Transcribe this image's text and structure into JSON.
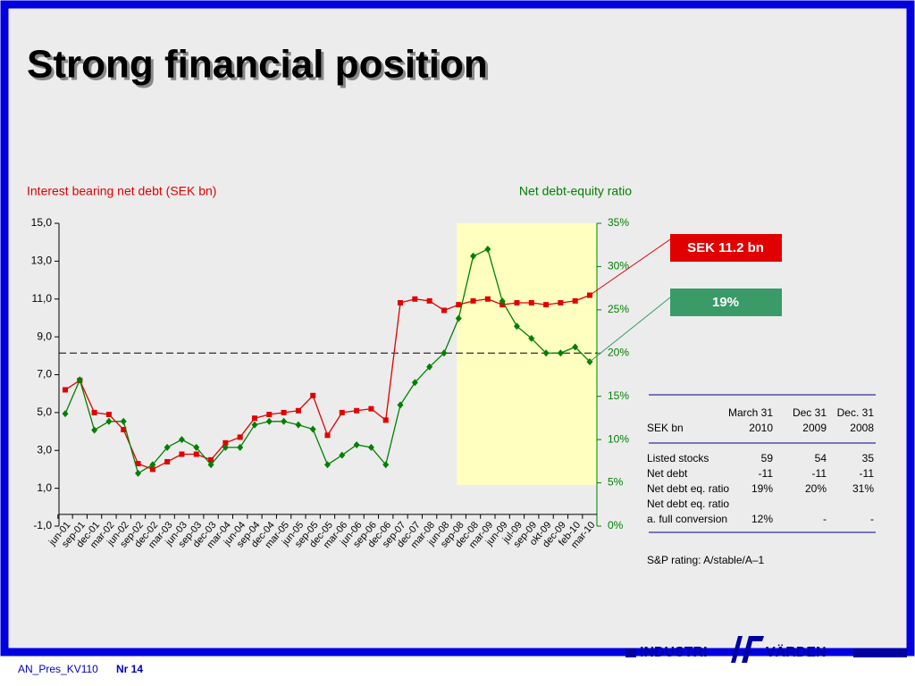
{
  "slide": {
    "title": "Strong financial position",
    "footer": {
      "file": "AN_Pres_KV110",
      "page": "Nr 14"
    },
    "logo": {
      "left": "INDUSTRI",
      "right": "VÄRDEN"
    }
  },
  "chart_data": {
    "type": "line",
    "categories": [
      "jun-01",
      "sep-01",
      "dec-01",
      "mar-02",
      "jun-02",
      "sep-02",
      "dec-02",
      "mar-03",
      "jun-03",
      "sep-03",
      "dec-03",
      "mar-04",
      "jun-04",
      "sep-04",
      "dec-04",
      "mar-05",
      "jun-05",
      "sep-05",
      "dec-05",
      "mar-06",
      "jun-06",
      "sep-06",
      "dec-06",
      "sep-07",
      "dec-07",
      "mar-08",
      "jun-08",
      "sep-08",
      "dec-08",
      "mar-09",
      "jun-09",
      "jul-09",
      "sep-09",
      "okt-09",
      "dec-09",
      "feb-10",
      "mar-10"
    ],
    "series": [
      {
        "name": "Interest bearing net debt  (SEK bn)",
        "color": "#e00000",
        "marker": "square",
        "axis": "y",
        "values": [
          6.2,
          6.7,
          5.0,
          4.9,
          4.1,
          2.3,
          2.0,
          2.4,
          2.8,
          2.8,
          2.5,
          3.4,
          3.7,
          4.7,
          4.9,
          5.0,
          5.1,
          5.9,
          3.8,
          5.0,
          5.1,
          5.2,
          4.6,
          10.8,
          11.0,
          10.9,
          10.4,
          10.7,
          10.9,
          11.0,
          10.7,
          10.8,
          10.8,
          10.7,
          10.8,
          10.9,
          11.2
        ]
      },
      {
        "name": "Net debt-equity ratio",
        "color": "#008000",
        "marker": "diamond",
        "axis": "y2",
        "values": [
          13.0,
          16.9,
          11.1,
          12.1,
          12.1,
          6.1,
          7.1,
          9.1,
          10.0,
          9.1,
          7.1,
          9.1,
          9.1,
          11.7,
          12.1,
          12.1,
          11.7,
          11.2,
          7.1,
          8.2,
          9.4,
          9.1,
          7.1,
          14.0,
          16.6,
          18.4,
          20.0,
          24.0,
          31.2,
          32.0,
          26.0,
          23.1,
          21.7,
          20.0,
          20.0,
          20.7,
          19.0
        ]
      }
    ],
    "ylim": [
      -1,
      15
    ],
    "yticks": [
      {
        "value": -1,
        "label": "-1,0"
      },
      {
        "value": 1,
        "label": "1,0"
      },
      {
        "value": 3,
        "label": "3,0"
      },
      {
        "value": 5,
        "label": "5,0"
      },
      {
        "value": 7,
        "label": "7,0"
      },
      {
        "value": 9,
        "label": "9,0"
      },
      {
        "value": 11,
        "label": "11,0"
      },
      {
        "value": 13,
        "label": "13,0"
      },
      {
        "value": 15,
        "label": "15,0"
      }
    ],
    "y2lim": [
      0,
      35
    ],
    "y2ticks": [
      {
        "value": 0,
        "label": "0%"
      },
      {
        "value": 5,
        "label": "5%"
      },
      {
        "value": 10,
        "label": "10%"
      },
      {
        "value": 15,
        "label": "15%"
      },
      {
        "value": 20,
        "label": "20%"
      },
      {
        "value": 25,
        "label": "25%"
      },
      {
        "value": 30,
        "label": "30%"
      },
      {
        "value": 35,
        "label": "35%"
      }
    ],
    "reference_line": {
      "value": 20,
      "axis": "y2"
    },
    "highlight_from": "sep-08",
    "highlight_color": "#ffffc0",
    "callouts": [
      {
        "label": "SEK 11.2 bn",
        "color": "#e00000"
      },
      {
        "label": "19%",
        "color": "#3a9a68"
      }
    ]
  },
  "table": {
    "header_top": [
      "March 31",
      "Dec 31",
      "Dec. 31"
    ],
    "header_bottom": [
      "SEK bn",
      "2010",
      "2009",
      "2008"
    ],
    "rows": [
      [
        "Listed stocks",
        "59",
        "54",
        "35"
      ],
      [
        "Net debt",
        "-11",
        "-11",
        "-11"
      ],
      [
        "Net debt eq. ratio",
        "19%",
        "20%",
        "31%"
      ],
      [
        "Net debt eq. ratio"
      ],
      [
        "a. full conversion",
        "12%",
        "-",
        "-"
      ]
    ],
    "note": "S&P rating: A/stable/A–1"
  }
}
